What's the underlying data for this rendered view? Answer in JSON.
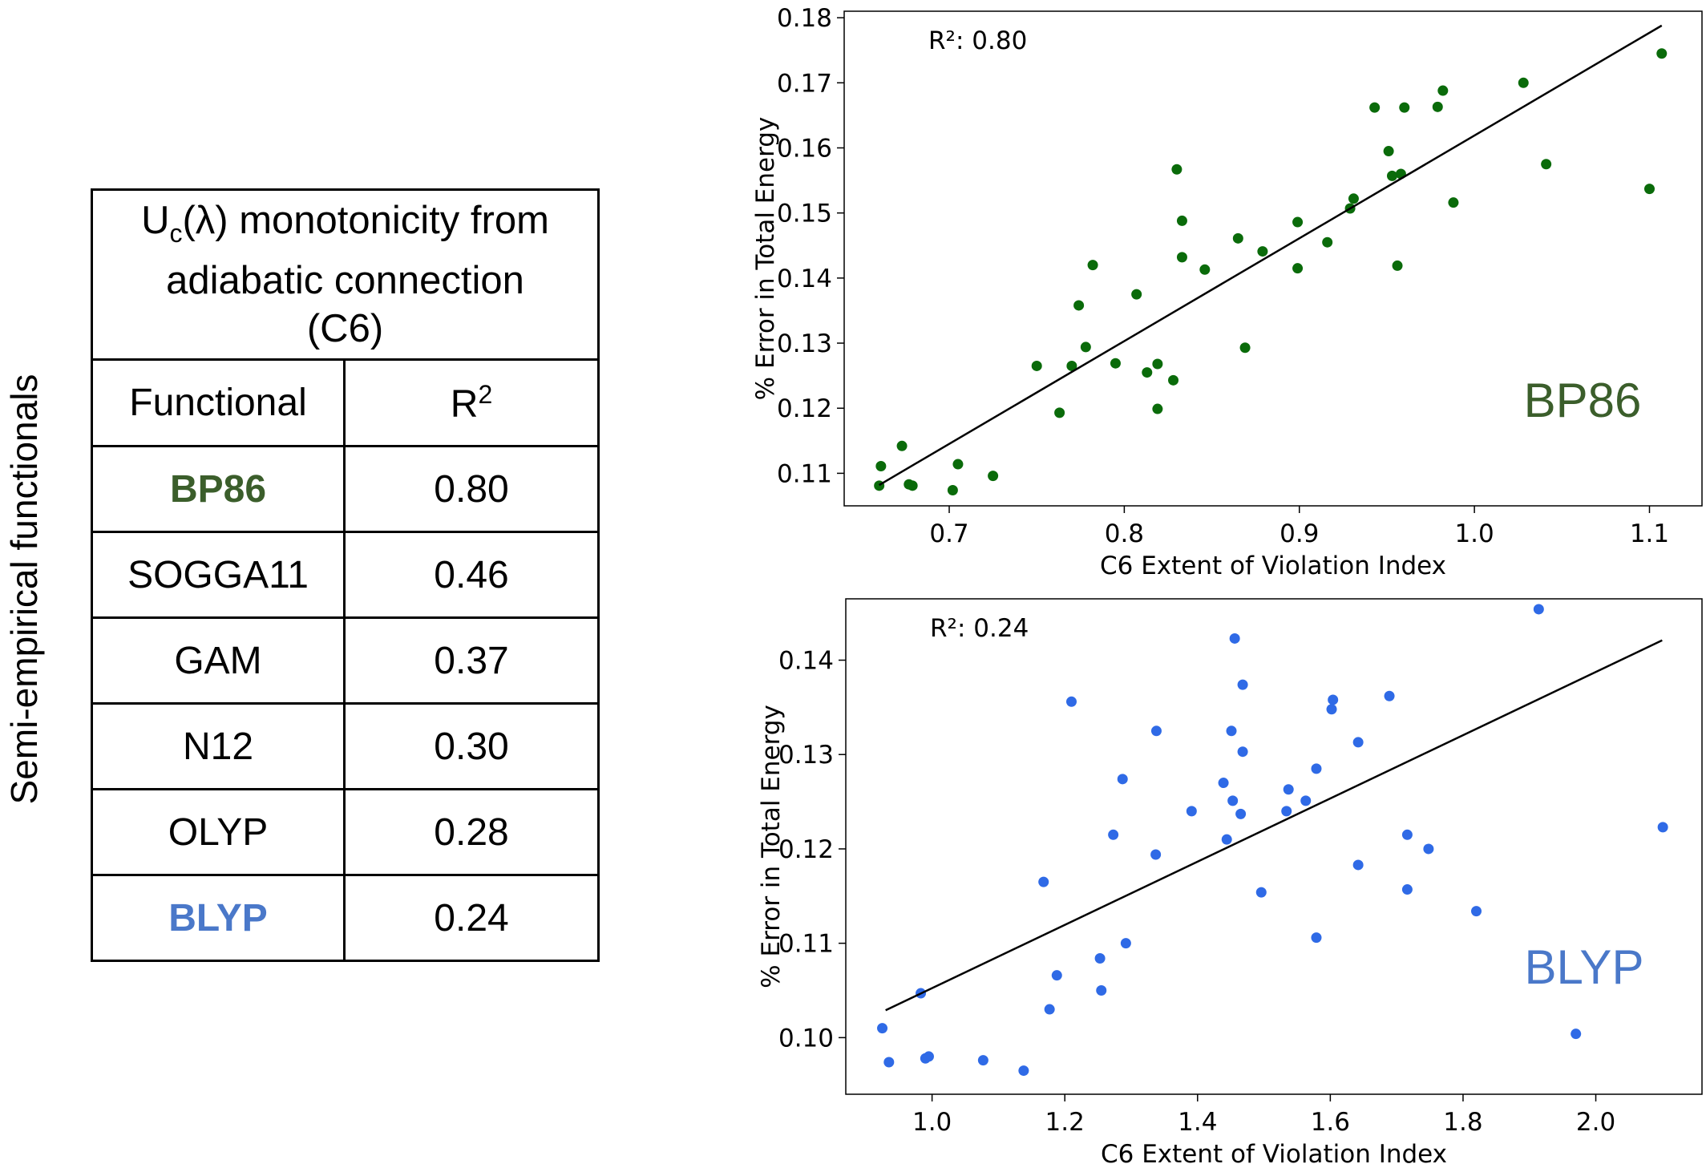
{
  "side_label": "Semi-empirical functionals",
  "table": {
    "header": {
      "line1_pre": "U",
      "line1_sub": "c",
      "line1_post": "(λ) monotonicity from",
      "line2": "adiabatic connection",
      "line3": "(C6)"
    },
    "col_functional": "Functional",
    "col_r2_base": "R",
    "col_r2_sup": "2",
    "rows": [
      {
        "functional": "BP86",
        "r2": "0.80",
        "color": "#3b5e2b",
        "bold": true
      },
      {
        "functional": "SOGGA11",
        "r2": "0.46",
        "color": "#000000",
        "bold": false
      },
      {
        "functional": "GAM",
        "r2": "0.37",
        "color": "#000000",
        "bold": false
      },
      {
        "functional": "N12",
        "r2": "0.30",
        "color": "#000000",
        "bold": false
      },
      {
        "functional": "OLYP",
        "r2": "0.28",
        "color": "#000000",
        "bold": false
      },
      {
        "functional": "BLYP",
        "r2": "0.24",
        "color": "#4a78c9",
        "bold": true
      }
    ]
  },
  "chart_data": [
    {
      "type": "scatter",
      "title": "",
      "xlabel": "C6 Extent of Violation Index",
      "ylabel": "% Error in Total Energy",
      "annotation": "R²: 0.80",
      "label": "BP86",
      "label_color": "#3b5e2b",
      "point_color": "#0a6b0a",
      "xlim": [
        0.64,
        1.13
      ],
      "ylim": [
        0.105,
        0.181
      ],
      "xticks": [
        0.7,
        0.8,
        0.9,
        1.0,
        1.1
      ],
      "xtick_labels": [
        "0.7",
        "0.8",
        "0.9",
        "1.0",
        "1.1"
      ],
      "yticks": [
        0.11,
        0.12,
        0.13,
        0.14,
        0.15,
        0.16,
        0.17,
        0.18
      ],
      "ytick_labels": [
        "0.11",
        "0.12",
        "0.13",
        "0.14",
        "0.15",
        "0.16",
        "0.17",
        "0.18"
      ],
      "fit_line": {
        "x": [
          0.66,
          1.107
        ],
        "y": [
          0.1082,
          0.1788
        ]
      },
      "points": [
        {
          "x": 0.66,
          "y": 0.1081
        },
        {
          "x": 0.661,
          "y": 0.1111
        },
        {
          "x": 0.673,
          "y": 0.1142
        },
        {
          "x": 0.677,
          "y": 0.1083
        },
        {
          "x": 0.679,
          "y": 0.1081
        },
        {
          "x": 0.702,
          "y": 0.1074
        },
        {
          "x": 0.705,
          "y": 0.1114
        },
        {
          "x": 0.725,
          "y": 0.1096
        },
        {
          "x": 0.75,
          "y": 0.1265
        },
        {
          "x": 0.763,
          "y": 0.1193
        },
        {
          "x": 0.77,
          "y": 0.1265
        },
        {
          "x": 0.774,
          "y": 0.1358
        },
        {
          "x": 0.778,
          "y": 0.1294
        },
        {
          "x": 0.782,
          "y": 0.142
        },
        {
          "x": 0.795,
          "y": 0.1269
        },
        {
          "x": 0.807,
          "y": 0.1375
        },
        {
          "x": 0.813,
          "y": 0.1255
        },
        {
          "x": 0.819,
          "y": 0.1268
        },
        {
          "x": 0.819,
          "y": 0.1199
        },
        {
          "x": 0.828,
          "y": 0.1243
        },
        {
          "x": 0.83,
          "y": 0.1567
        },
        {
          "x": 0.833,
          "y": 0.1488
        },
        {
          "x": 0.833,
          "y": 0.1432
        },
        {
          "x": 0.846,
          "y": 0.1413
        },
        {
          "x": 0.865,
          "y": 0.1461
        },
        {
          "x": 0.869,
          "y": 0.1293
        },
        {
          "x": 0.879,
          "y": 0.1441
        },
        {
          "x": 0.899,
          "y": 0.1486
        },
        {
          "x": 0.899,
          "y": 0.1415
        },
        {
          "x": 0.916,
          "y": 0.1455
        },
        {
          "x": 0.929,
          "y": 0.1507
        },
        {
          "x": 0.931,
          "y": 0.1522
        },
        {
          "x": 0.943,
          "y": 0.1662
        },
        {
          "x": 0.951,
          "y": 0.1595
        },
        {
          "x": 0.953,
          "y": 0.1557
        },
        {
          "x": 0.956,
          "y": 0.1419
        },
        {
          "x": 0.958,
          "y": 0.156
        },
        {
          "x": 0.96,
          "y": 0.1662
        },
        {
          "x": 0.979,
          "y": 0.1663
        },
        {
          "x": 0.982,
          "y": 0.1688
        },
        {
          "x": 0.988,
          "y": 0.1516
        },
        {
          "x": 1.028,
          "y": 0.17
        },
        {
          "x": 1.041,
          "y": 0.1575
        },
        {
          "x": 1.1,
          "y": 0.1537
        },
        {
          "x": 1.107,
          "y": 0.1745
        }
      ]
    },
    {
      "type": "scatter",
      "title": "",
      "xlabel": "C6 Extent of Violation Index",
      "ylabel": "% Error in Total Energy",
      "annotation": "R²: 0.24",
      "label": "BLYP",
      "label_color": "#4a78c9",
      "point_color": "#2f6ae6",
      "xlim": [
        0.87,
        2.16
      ],
      "ylim": [
        0.094,
        0.1465
      ],
      "xticks": [
        1.0,
        1.2,
        1.4,
        1.6,
        1.8,
        2.0
      ],
      "xtick_labels": [
        "1.0",
        "1.2",
        "1.4",
        "1.6",
        "1.8",
        "2.0"
      ],
      "yticks": [
        0.1,
        0.11,
        0.12,
        0.13,
        0.14
      ],
      "ytick_labels": [
        "0.10",
        "0.11",
        "0.12",
        "0.13",
        "0.14"
      ],
      "fit_line": {
        "x": [
          0.93,
          2.1
        ],
        "y": [
          0.1029,
          0.1421
        ]
      },
      "points": [
        {
          "x": 0.925,
          "y": 0.101
        },
        {
          "x": 0.935,
          "y": 0.0974
        },
        {
          "x": 0.983,
          "y": 0.1047
        },
        {
          "x": 0.99,
          "y": 0.0978
        },
        {
          "x": 0.995,
          "y": 0.098
        },
        {
          "x": 1.077,
          "y": 0.0976
        },
        {
          "x": 1.138,
          "y": 0.0965
        },
        {
          "x": 1.168,
          "y": 0.1165
        },
        {
          "x": 1.177,
          "y": 0.103
        },
        {
          "x": 1.188,
          "y": 0.1066
        },
        {
          "x": 1.21,
          "y": 0.1356
        },
        {
          "x": 1.253,
          "y": 0.1084
        },
        {
          "x": 1.255,
          "y": 0.105
        },
        {
          "x": 1.273,
          "y": 0.1215
        },
        {
          "x": 1.287,
          "y": 0.1274
        },
        {
          "x": 1.292,
          "y": 0.11
        },
        {
          "x": 1.337,
          "y": 0.1194
        },
        {
          "x": 1.338,
          "y": 0.1325
        },
        {
          "x": 1.391,
          "y": 0.124
        },
        {
          "x": 1.439,
          "y": 0.127
        },
        {
          "x": 1.444,
          "y": 0.121
        },
        {
          "x": 1.451,
          "y": 0.1325
        },
        {
          "x": 1.453,
          "y": 0.1251
        },
        {
          "x": 1.456,
          "y": 0.1423
        },
        {
          "x": 1.465,
          "y": 0.1237
        },
        {
          "x": 1.468,
          "y": 0.1303
        },
        {
          "x": 1.468,
          "y": 0.1374
        },
        {
          "x": 1.496,
          "y": 0.1154
        },
        {
          "x": 1.534,
          "y": 0.124
        },
        {
          "x": 1.537,
          "y": 0.1263
        },
        {
          "x": 1.563,
          "y": 0.1251
        },
        {
          "x": 1.579,
          "y": 0.1285
        },
        {
          "x": 1.579,
          "y": 0.1106
        },
        {
          "x": 1.602,
          "y": 0.1348
        },
        {
          "x": 1.604,
          "y": 0.1358
        },
        {
          "x": 1.642,
          "y": 0.1313
        },
        {
          "x": 1.642,
          "y": 0.1183
        },
        {
          "x": 1.689,
          "y": 0.1362
        },
        {
          "x": 1.716,
          "y": 0.1215
        },
        {
          "x": 1.716,
          "y": 0.1157
        },
        {
          "x": 1.748,
          "y": 0.12
        },
        {
          "x": 1.82,
          "y": 0.1134
        },
        {
          "x": 1.914,
          "y": 0.1454
        },
        {
          "x": 1.97,
          "y": 0.1004
        },
        {
          "x": 2.101,
          "y": 0.1223
        }
      ]
    }
  ]
}
